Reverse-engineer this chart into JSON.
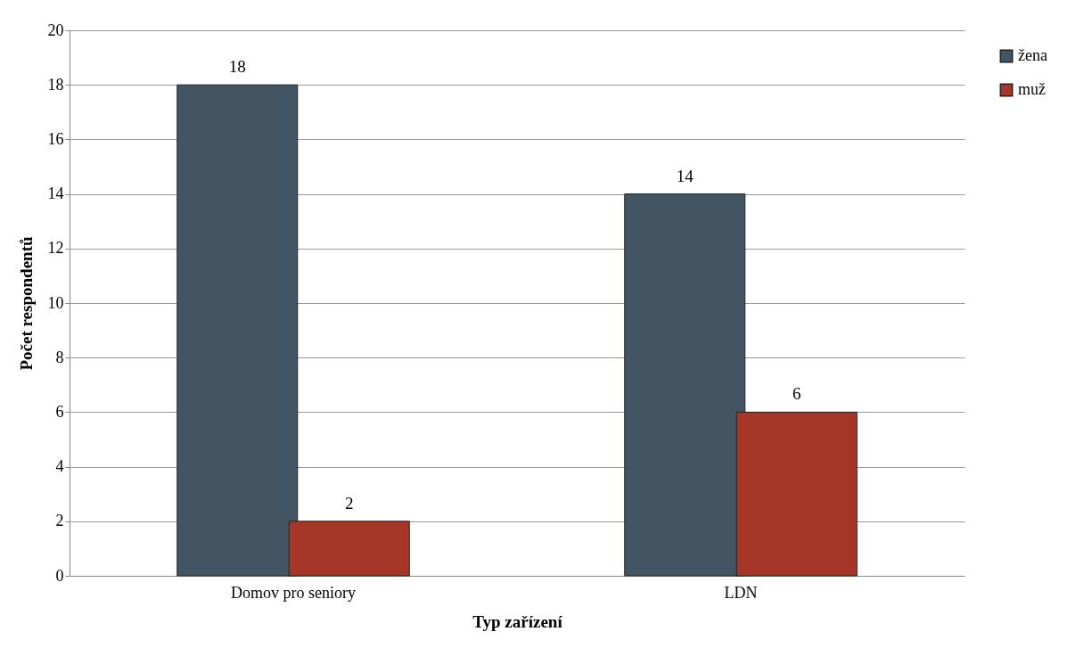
{
  "chart_data": {
    "type": "bar",
    "xlabel": "Typ zařízení",
    "ylabel": "Počet respondentů",
    "categories": [
      "Domov pro seniory",
      "LDN"
    ],
    "series": [
      {
        "name": "žena",
        "color": "#435563",
        "values": [
          18,
          14
        ]
      },
      {
        "name": "muž",
        "color": "#a63728",
        "values": [
          2,
          6
        ]
      }
    ],
    "ylim": [
      0,
      20
    ],
    "yticks": [
      0,
      2,
      4,
      6,
      8,
      10,
      12,
      14,
      16,
      18,
      20
    ],
    "grid": "y",
    "legend": "right",
    "data_labels": true
  }
}
